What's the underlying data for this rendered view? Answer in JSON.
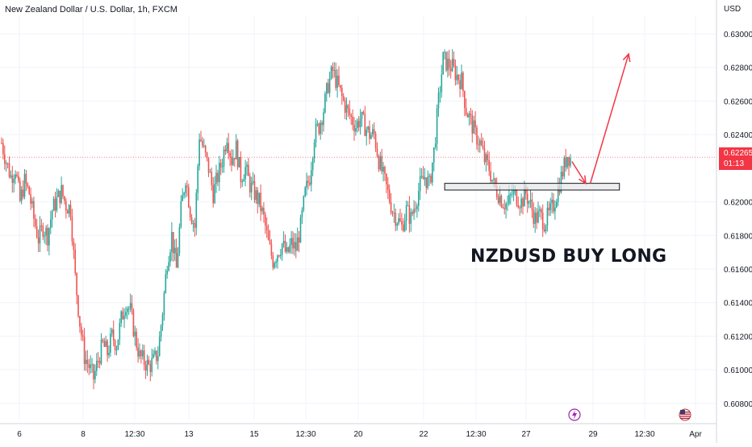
{
  "header": {
    "symbol_title": "New Zealand Dollar / U.S. Dollar, 1h, FXCM",
    "currency": "USD"
  },
  "annotation": {
    "text": "NZDUSD BUY LONG"
  },
  "price_tag": {
    "price": "0.62265",
    "countdown": "01:13",
    "color": "#f23645"
  },
  "colors": {
    "up": "#26a69a",
    "down": "#ef5350",
    "arrow": "#f23645",
    "grid": "#f0f3fa",
    "zone_fill": "#e6e6e6"
  },
  "events": {
    "lightning_icon": "lightning-icon",
    "flag_icon": "us-flag-icon"
  },
  "chart_data": {
    "type": "candlestick",
    "title": "New Zealand Dollar / U.S. Dollar, 1h, FXCM",
    "ylabel": "USD",
    "ylim": [
      0.6068,
      0.6305
    ],
    "y_ticks": [
      "0.63000",
      "0.62800",
      "0.62600",
      "0.62400",
      "0.62000",
      "0.61800",
      "0.61600",
      "0.61400",
      "0.61200",
      "0.61000",
      "0.60800"
    ],
    "x_ticks": [
      "6",
      "8",
      "12:30",
      "13",
      "15",
      "12:30",
      "20",
      "22",
      "12:30",
      "27",
      "29",
      "12:30",
      "Apr"
    ],
    "last_price": 0.62265,
    "price_path": [
      [
        0,
        0.6235
      ],
      [
        3,
        0.6224
      ],
      [
        6,
        0.6215
      ],
      [
        9,
        0.622
      ],
      [
        12,
        0.62
      ],
      [
        15,
        0.6212
      ],
      [
        18,
        0.6205
      ],
      [
        21,
        0.619
      ],
      [
        24,
        0.6178
      ],
      [
        27,
        0.6185
      ],
      [
        30,
        0.618
      ],
      [
        33,
        0.6195
      ],
      [
        36,
        0.6201
      ],
      [
        39,
        0.6206
      ],
      [
        42,
        0.6198
      ],
      [
        45,
        0.6196
      ],
      [
        48,
        0.6155
      ],
      [
        51,
        0.6128
      ],
      [
        54,
        0.6108
      ],
      [
        57,
        0.6102
      ],
      [
        60,
        0.6095
      ],
      [
        63,
        0.6106
      ],
      [
        66,
        0.6115
      ],
      [
        69,
        0.611
      ],
      [
        72,
        0.612
      ],
      [
        75,
        0.6115
      ],
      [
        78,
        0.613
      ],
      [
        81,
        0.614
      ],
      [
        84,
        0.6135
      ],
      [
        87,
        0.612
      ],
      [
        90,
        0.6108
      ],
      [
        93,
        0.6105
      ],
      [
        96,
        0.6102
      ],
      [
        99,
        0.6105
      ],
      [
        102,
        0.611
      ],
      [
        105,
        0.6135
      ],
      [
        108,
        0.6165
      ],
      [
        111,
        0.618
      ],
      [
        114,
        0.616
      ],
      [
        117,
        0.6195
      ],
      [
        120,
        0.6215
      ],
      [
        123,
        0.6195
      ],
      [
        126,
        0.6185
      ],
      [
        129,
        0.624
      ],
      [
        132,
        0.623
      ],
      [
        135,
        0.622
      ],
      [
        138,
        0.6205
      ],
      [
        141,
        0.6215
      ],
      [
        144,
        0.6225
      ],
      [
        147,
        0.624
      ],
      [
        150,
        0.6225
      ],
      [
        153,
        0.6232
      ],
      [
        156,
        0.6215
      ],
      [
        159,
        0.622
      ],
      [
        162,
        0.621
      ],
      [
        165,
        0.6205
      ],
      [
        168,
        0.62
      ],
      [
        171,
        0.619
      ],
      [
        174,
        0.6175
      ],
      [
        177,
        0.6165
      ],
      [
        180,
        0.617
      ],
      [
        183,
        0.6175
      ],
      [
        186,
        0.6168
      ],
      [
        189,
        0.6175
      ],
      [
        192,
        0.6172
      ],
      [
        195,
        0.6185
      ],
      [
        198,
        0.6205
      ],
      [
        201,
        0.6215
      ],
      [
        204,
        0.624
      ],
      [
        207,
        0.6245
      ],
      [
        210,
        0.6255
      ],
      [
        213,
        0.627
      ],
      [
        216,
        0.6278
      ],
      [
        219,
        0.627
      ],
      [
        222,
        0.6262
      ],
      [
        225,
        0.6255
      ],
      [
        228,
        0.625
      ],
      [
        231,
        0.6245
      ],
      [
        234,
        0.625
      ],
      [
        237,
        0.6245
      ],
      [
        240,
        0.624
      ],
      [
        243,
        0.624
      ],
      [
        246,
        0.6225
      ],
      [
        249,
        0.6215
      ],
      [
        252,
        0.6205
      ],
      [
        255,
        0.6195
      ],
      [
        258,
        0.619
      ],
      [
        261,
        0.6185
      ],
      [
        264,
        0.6195
      ],
      [
        267,
        0.619
      ],
      [
        270,
        0.62
      ],
      [
        273,
        0.621
      ],
      [
        276,
        0.6215
      ],
      [
        279,
        0.621
      ],
      [
        282,
        0.623
      ],
      [
        285,
        0.626
      ],
      [
        288,
        0.6285
      ],
      [
        291,
        0.6282
      ],
      [
        294,
        0.628
      ],
      [
        297,
        0.6275
      ],
      [
        300,
        0.6272
      ],
      [
        303,
        0.6255
      ],
      [
        306,
        0.6248
      ],
      [
        309,
        0.624
      ],
      [
        312,
        0.6235
      ],
      [
        315,
        0.6225
      ],
      [
        318,
        0.622
      ],
      [
        321,
        0.621
      ],
      [
        324,
        0.6205
      ],
      [
        327,
        0.62
      ],
      [
        330,
        0.6198
      ],
      [
        333,
        0.6205
      ],
      [
        336,
        0.6203
      ],
      [
        339,
        0.62
      ],
      [
        342,
        0.6205
      ],
      [
        345,
        0.6198
      ],
      [
        348,
        0.619
      ],
      [
        351,
        0.6192
      ],
      [
        354,
        0.6188
      ],
      [
        357,
        0.6192
      ],
      [
        360,
        0.6198
      ],
      [
        363,
        0.6208
      ],
      [
        366,
        0.6218
      ],
      [
        369,
        0.6228
      ],
      [
        371,
        0.6226
      ]
    ],
    "support_zone": {
      "x": [
        289,
        403
      ],
      "y": [
        0.6207,
        0.6211
      ]
    },
    "arrows": [
      {
        "from": [
          372,
          0.6224
        ],
        "to": [
          381,
          0.6211
        ]
      },
      {
        "from": [
          384,
          0.6211
        ],
        "to": [
          409,
          0.6288
        ]
      }
    ]
  }
}
